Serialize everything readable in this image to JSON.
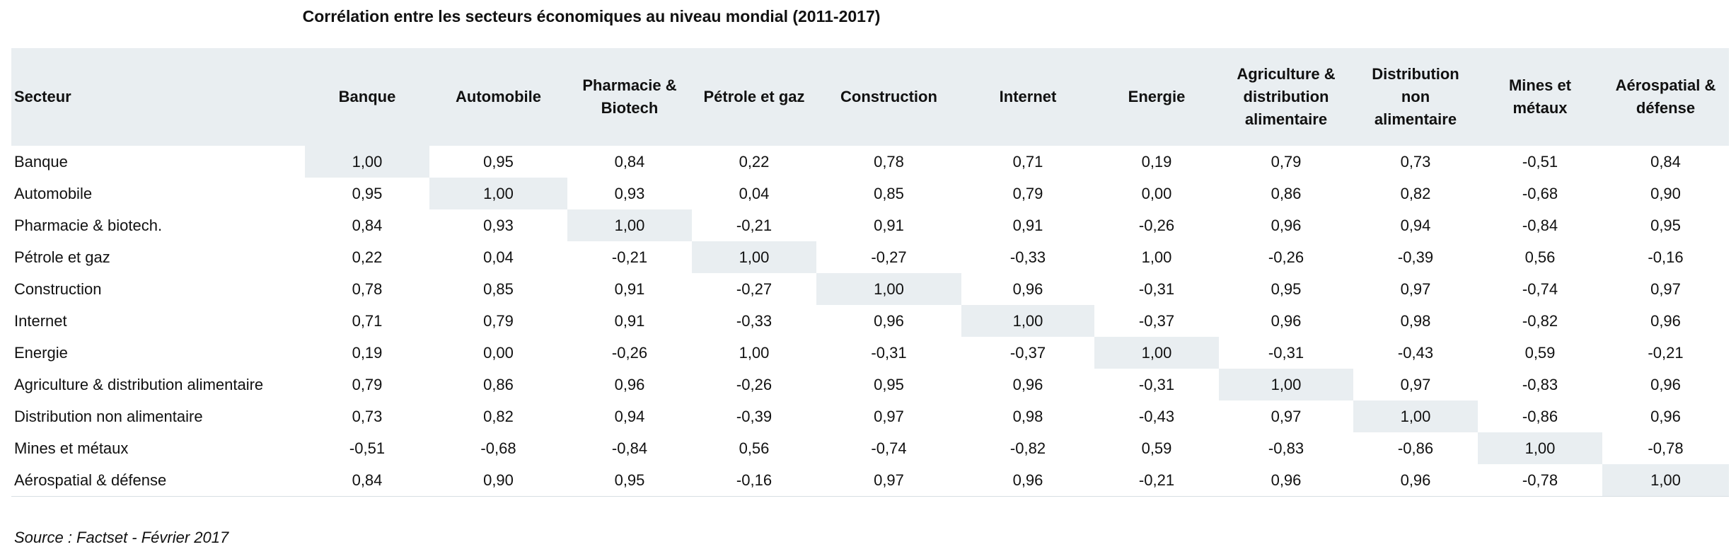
{
  "chart_data": {
    "type": "table",
    "title": "Corrélation entre les secteurs économiques au niveau mondial (2011-2017)",
    "corner_header": "Secteur",
    "columns": [
      "Banque",
      "Automobile",
      "Pharmacie & Biotech",
      "Pétrole et gaz",
      "Construction",
      "Internet",
      "Energie",
      "Agriculture & distribution alimentaire",
      "Distribution non alimentaire",
      "Mines et métaux",
      "Aérospatial & défense"
    ],
    "rows": [
      {
        "label": "Banque",
        "values": [
          "1,00",
          "0,95",
          "0,84",
          "0,22",
          "0,78",
          "0,71",
          "0,19",
          "0,79",
          "0,73",
          "-0,51",
          "0,84"
        ]
      },
      {
        "label": "Automobile",
        "values": [
          "0,95",
          "1,00",
          "0,93",
          "0,04",
          "0,85",
          "0,79",
          "0,00",
          "0,86",
          "0,82",
          "-0,68",
          "0,90"
        ]
      },
      {
        "label": "Pharmacie & biotech.",
        "values": [
          "0,84",
          "0,93",
          "1,00",
          "-0,21",
          "0,91",
          "0,91",
          "-0,26",
          "0,96",
          "0,94",
          "-0,84",
          "0,95"
        ]
      },
      {
        "label": "Pétrole et gaz",
        "values": [
          "0,22",
          "0,04",
          "-0,21",
          "1,00",
          "-0,27",
          "-0,33",
          "1,00",
          "-0,26",
          "-0,39",
          "0,56",
          "-0,16"
        ]
      },
      {
        "label": "Construction",
        "values": [
          "0,78",
          "0,85",
          "0,91",
          "-0,27",
          "1,00",
          "0,96",
          "-0,31",
          "0,95",
          "0,97",
          "-0,74",
          "0,97"
        ]
      },
      {
        "label": "Internet",
        "values": [
          "0,71",
          "0,79",
          "0,91",
          "-0,33",
          "0,96",
          "1,00",
          "-0,37",
          "0,96",
          "0,98",
          "-0,82",
          "0,96"
        ]
      },
      {
        "label": "Energie",
        "values": [
          "0,19",
          "0,00",
          "-0,26",
          "1,00",
          "-0,31",
          "-0,37",
          "1,00",
          "-0,31",
          "-0,43",
          "0,59",
          "-0,21"
        ]
      },
      {
        "label": "Agriculture & distribution alimentaire",
        "values": [
          "0,79",
          "0,86",
          "0,96",
          "-0,26",
          "0,95",
          "0,96",
          "-0,31",
          "1,00",
          "0,97",
          "-0,83",
          "0,96"
        ]
      },
      {
        "label": "Distribution non alimentaire",
        "values": [
          "0,73",
          "0,82",
          "0,94",
          "-0,39",
          "0,97",
          "0,98",
          "-0,43",
          "0,97",
          "1,00",
          "-0,86",
          "0,96"
        ]
      },
      {
        "label": "Mines et métaux",
        "values": [
          "-0,51",
          "-0,68",
          "-0,84",
          "0,56",
          "-0,74",
          "-0,82",
          "0,59",
          "-0,83",
          "-0,86",
          "1,00",
          "-0,78"
        ]
      },
      {
        "label": "Aérospatial & défense",
        "values": [
          "0,84",
          "0,90",
          "0,95",
          "-0,16",
          "0,97",
          "0,96",
          "-0,21",
          "0,96",
          "0,96",
          "-0,78",
          "1,00"
        ]
      }
    ],
    "source": "Source : Factset - Février 2017",
    "highlight_diagonal": true,
    "colors": {
      "header_background": "#e9eef1",
      "diagonal_background": "#e9eef1",
      "text": "#111111"
    }
  }
}
